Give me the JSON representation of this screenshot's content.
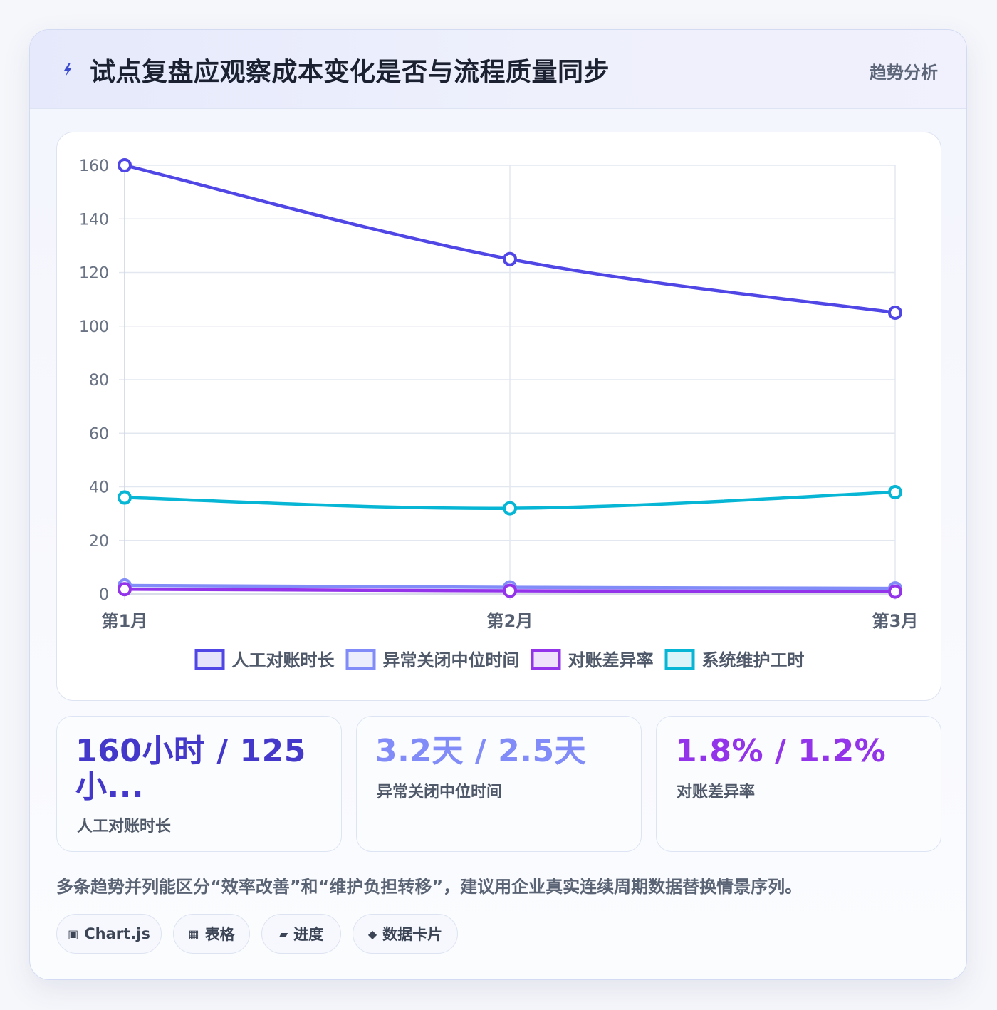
{
  "header": {
    "title": "试点复盘应观察成本变化是否与流程质量同步",
    "tag": "趋势分析"
  },
  "chart_data": {
    "type": "line",
    "categories": [
      "第1月",
      "第2月",
      "第3月"
    ],
    "series": [
      {
        "name": "人工对账时长",
        "values": [
          160,
          125,
          105
        ],
        "color": "#4f46e5"
      },
      {
        "name": "异常关闭中位时间",
        "values": [
          3.2,
          2.5,
          2.1
        ],
        "color": "#818cf8"
      },
      {
        "name": "对账差异率",
        "values": [
          1.8,
          1.2,
          0.9
        ],
        "color": "#9333ea"
      },
      {
        "name": "系统维护工时",
        "values": [
          36,
          32,
          38
        ],
        "color": "#06b6d4"
      }
    ],
    "ylim": [
      0,
      160
    ],
    "yticks": [
      0,
      20,
      40,
      60,
      80,
      100,
      120,
      140,
      160
    ],
    "grid": true,
    "legend_position": "bottom"
  },
  "stats": [
    {
      "value": "160小时 / 125小...",
      "label": "人工对账时长",
      "color": "#4338ca"
    },
    {
      "value": "3.2天 / 2.5天",
      "label": "异常关闭中位时间",
      "color": "#818cf8"
    },
    {
      "value": "1.8% / 1.2%",
      "label": "对账差异率",
      "color": "#9333ea"
    }
  ],
  "note": "多条趋势并列能区分“效率改善”和“维护负担转移”，建议用企业真实连续周期数据替换情景序列。",
  "tags": [
    {
      "icon": "▣",
      "label": "Chart.js"
    },
    {
      "icon": "▦",
      "label": "表格"
    },
    {
      "icon": "▰",
      "label": "进度"
    },
    {
      "icon": "◆",
      "label": "数据卡片"
    }
  ]
}
